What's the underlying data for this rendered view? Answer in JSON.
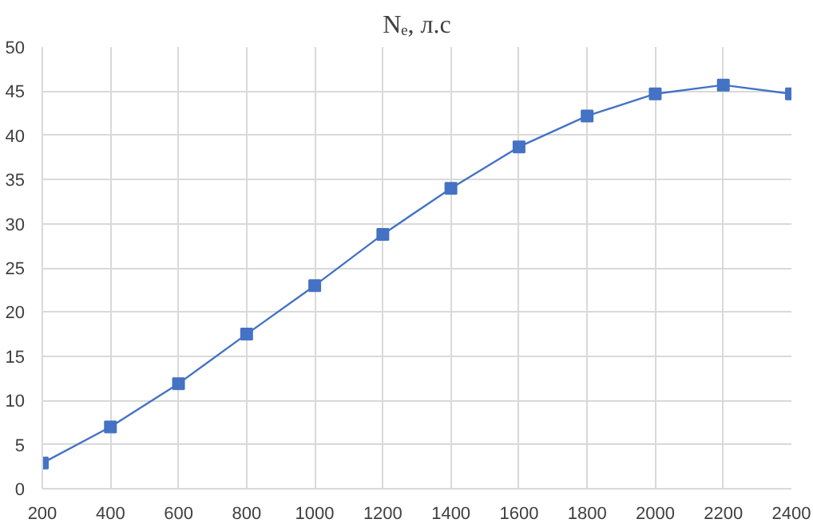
{
  "chart_data": {
    "type": "line",
    "title": "Nₑ, л.с",
    "x": [
      200,
      400,
      600,
      800,
      1000,
      1200,
      1400,
      1600,
      1800,
      2000,
      2200,
      2400
    ],
    "series": [
      {
        "color": "#4472c4",
        "values": [
          2.9,
          7.0,
          11.9,
          17.5,
          23.0,
          28.8,
          34.0,
          38.7,
          42.2,
          44.7,
          45.7,
          44.7
        ]
      }
    ],
    "xlim": [
      200,
      2400
    ],
    "xticks": [
      200,
      400,
      600,
      800,
      1000,
      1200,
      1400,
      1600,
      1800,
      2000,
      2200,
      2400
    ],
    "ylim": [
      0,
      50
    ],
    "yticks": [
      0,
      5,
      10,
      15,
      20,
      25,
      30,
      35,
      40,
      45,
      50
    ],
    "grid": true,
    "marker": "square",
    "line_style": "solid"
  }
}
